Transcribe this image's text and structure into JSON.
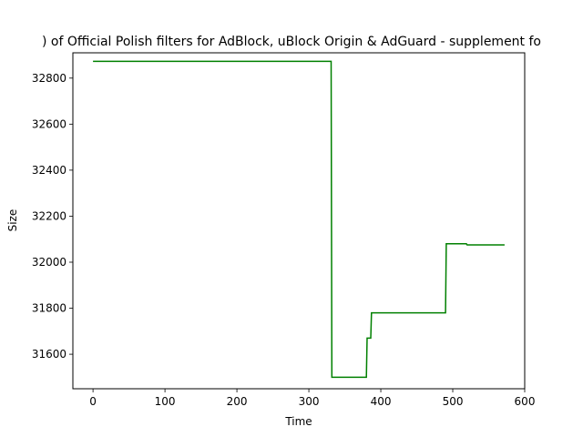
{
  "chart_data": {
    "type": "line",
    "title": ") of Official Polish filters for AdBlock, uBlock Origin & AdGuard - supplement fo",
    "xlabel": "Time",
    "ylabel": "Size",
    "xlim": [
      -28,
      600
    ],
    "ylim": [
      31450,
      32910
    ],
    "xticks": [
      0,
      100,
      200,
      300,
      400,
      500,
      600
    ],
    "yticks": [
      31600,
      31800,
      32000,
      32200,
      32400,
      32600,
      32800
    ],
    "grid": false,
    "legend": "none",
    "series": [
      {
        "color": "#008000",
        "x": [
          0,
          331,
          332,
          380,
          381,
          386,
          387,
          490,
          491,
          519,
          520,
          572
        ],
        "y": [
          32873,
          32873,
          31500,
          31500,
          31670,
          31670,
          31780,
          31780,
          32080,
          32080,
          32075,
          32075
        ]
      }
    ]
  }
}
